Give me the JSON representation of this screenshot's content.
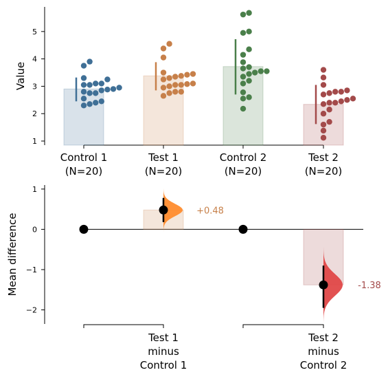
{
  "colors": {
    "control1": "#3f6f96",
    "test1": "#c7804a",
    "control2": "#4a7f4a",
    "test2": "#a34a4a",
    "kde1": "#ff8c2e",
    "kde2": "#e04848"
  },
  "chart_data": [
    {
      "type": "bar",
      "ylabel": "Value",
      "ylim": [
        0.85,
        5.9
      ],
      "yticks": [
        1,
        2,
        3,
        4,
        5
      ],
      "groups": [
        {
          "key": "control1",
          "line1": "Control 1",
          "line2": "(N=20)",
          "mean": 2.9,
          "sd_low": 2.45,
          "sd_high": 3.32,
          "points": [
            3.9,
            3.75,
            3.3,
            3.25,
            3.1,
            3.1,
            3.05,
            3.05,
            2.95,
            2.9,
            2.88,
            2.85,
            2.8,
            2.75,
            2.75,
            2.55,
            2.45,
            2.4,
            2.35,
            2.3
          ]
        },
        {
          "key": "test1",
          "line1": "Test 1",
          "line2": "(N=20)",
          "mean": 3.38,
          "sd_low": 2.85,
          "sd_high": 3.88,
          "points": [
            4.55,
            4.38,
            4.05,
            3.5,
            3.45,
            3.42,
            3.38,
            3.35,
            3.3,
            3.25,
            3.1,
            3.08,
            3.05,
            3.05,
            3.0,
            2.95,
            2.8,
            2.8,
            2.75,
            2.65
          ]
        },
        {
          "key": "control2",
          "line1": "Control 2",
          "line2": "(N=20)",
          "mean": 3.72,
          "sd_low": 2.7,
          "sd_high": 4.72,
          "points": [
            5.68,
            5.62,
            5.0,
            4.95,
            4.35,
            4.15,
            3.88,
            3.7,
            3.65,
            3.55,
            3.55,
            3.5,
            3.45,
            3.35,
            3.2,
            3.1,
            2.78,
            2.6,
            2.55,
            2.18
          ]
        },
        {
          "key": "test2",
          "line1": "Test 2",
          "line2": "(N=20)",
          "mean": 2.34,
          "sd_low": 1.62,
          "sd_high": 3.05,
          "points": [
            3.6,
            3.32,
            3.05,
            2.85,
            2.8,
            2.8,
            2.75,
            2.7,
            2.55,
            2.5,
            2.45,
            2.4,
            2.4,
            2.35,
            2.15,
            2.0,
            1.7,
            1.6,
            1.38,
            1.12
          ]
        }
      ]
    },
    {
      "type": "estimation",
      "ylabel": "Mean difference",
      "ylim": [
        -2.35,
        1.1
      ],
      "yticks": [
        1,
        0,
        -1,
        -2
      ],
      "references": [
        "control1",
        "control2"
      ],
      "comparisons": [
        {
          "key": "test1",
          "ref": "control1",
          "line1": "Test 1",
          "line2": "minus",
          "line3": "Control 1",
          "diff": 0.48,
          "ci_low": 0.18,
          "ci_high": 0.78,
          "label": "+0.48"
        },
        {
          "key": "test2",
          "ref": "control2",
          "line1": "Test 2",
          "line2": "minus",
          "line3": "Control 2",
          "diff": -1.38,
          "ci_low": -1.95,
          "ci_high": -0.9,
          "label": "-1.38"
        }
      ]
    }
  ]
}
